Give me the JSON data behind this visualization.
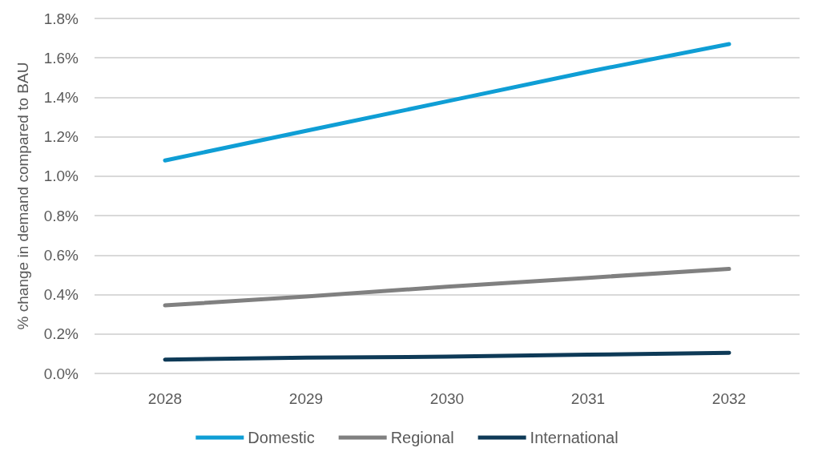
{
  "chart_data": {
    "type": "line",
    "ylabel": "% change in demand compared to BAU",
    "categories": [
      "2028",
      "2029",
      "2030",
      "2031",
      "2032"
    ],
    "series": [
      {
        "name": "Domestic",
        "color": "#0f9ed5",
        "values": [
          1.08,
          1.23,
          1.38,
          1.53,
          1.67
        ]
      },
      {
        "name": "Regional",
        "color": "#808080",
        "values": [
          0.345,
          0.39,
          0.44,
          0.485,
          0.53
        ]
      },
      {
        "name": "International",
        "color": "#0e3a57",
        "values": [
          0.07,
          0.08,
          0.085,
          0.095,
          0.105
        ]
      }
    ],
    "ylim": [
      0,
      1.8
    ],
    "yticks": [
      {
        "value": 0,
        "label": "0.0%"
      },
      {
        "value": 0.2,
        "label": "0.2%"
      },
      {
        "value": 0.4,
        "label": "0.4%"
      },
      {
        "value": 0.6,
        "label": "0.6%"
      },
      {
        "value": 0.8,
        "label": "0.8%"
      },
      {
        "value": 1,
        "label": "1.0%"
      },
      {
        "value": 1.2,
        "label": "1.2%"
      },
      {
        "value": 1.4,
        "label": "1.4%"
      },
      {
        "value": 1.6,
        "label": "1.6%"
      },
      {
        "value": 1.8,
        "label": "1.8%"
      }
    ],
    "grid": "y",
    "legend": "bottom",
    "marker": "none",
    "line_style": "solid"
  }
}
